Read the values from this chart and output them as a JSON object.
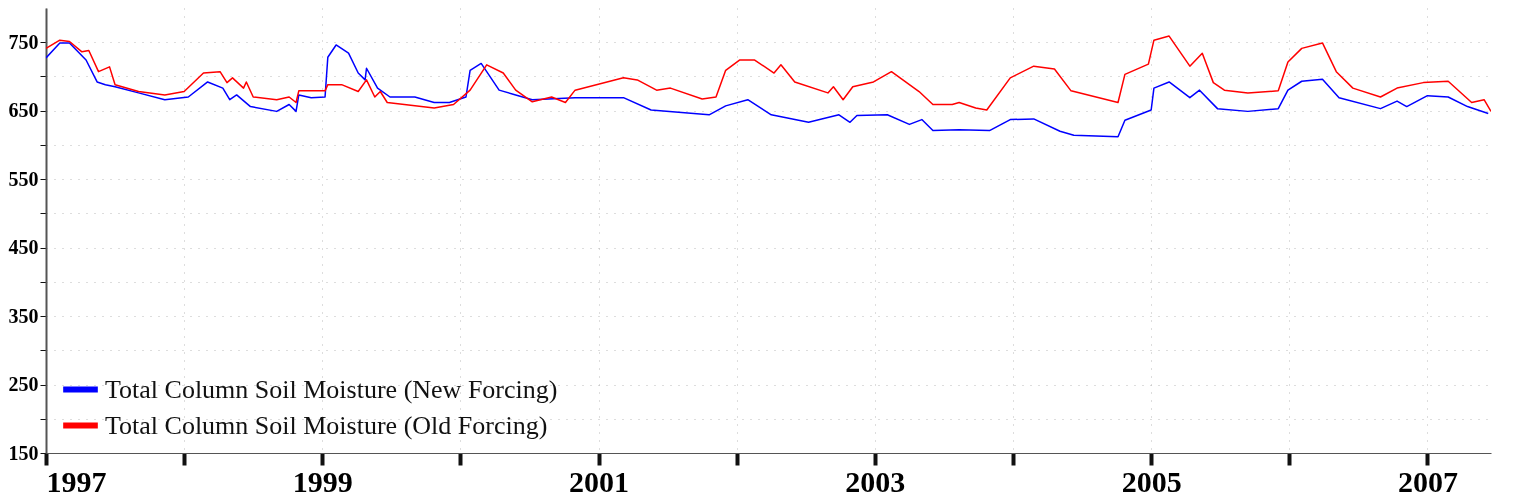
{
  "chart_data": {
    "type": "line",
    "xlim": [
      1997,
      2007.46
    ],
    "ylim": [
      150,
      800
    ],
    "xticks": [
      1997,
      {
        "value": 1998,
        "label": null
      },
      1999,
      {
        "value": 2000,
        "label": null
      },
      2001,
      {
        "value": 2002,
        "label": null
      },
      2003,
      {
        "value": 2004,
        "label": null
      },
      2005,
      {
        "value": 2006,
        "label": null
      },
      2007
    ],
    "yticks": [
      150,
      {
        "value": 200,
        "label": null
      },
      250,
      {
        "value": 300,
        "label": null
      },
      350,
      {
        "value": 400,
        "label": null
      },
      450,
      {
        "value": 500,
        "label": null
      },
      550,
      {
        "value": 600,
        "label": null
      },
      650,
      {
        "value": 700,
        "label": null
      },
      750
    ],
    "grid": true,
    "legend": "bottom left",
    "series": [
      {
        "name": "Total Column Soil Moisture (New Forcing)",
        "color": "#0000ff",
        "x": [
          1997.0,
          1997.1,
          1997.17,
          1997.29,
          1997.37,
          1997.43,
          1997.5,
          1997.67,
          1997.86,
          1998.03,
          1998.17,
          1998.28,
          1998.33,
          1998.38,
          1998.48,
          1998.67,
          1998.76,
          1998.81,
          1998.83,
          1998.92,
          1999.02,
          1999.04,
          1999.1,
          1999.19,
          1999.26,
          1999.31,
          1999.32,
          1999.4,
          1999.49,
          1999.67,
          1999.81,
          1999.92,
          2000.04,
          2000.07,
          2000.15,
          2000.28,
          2000.4,
          2000.52,
          2000.83,
          2001.18,
          2001.38,
          2001.8,
          2001.92,
          2002.08,
          2002.25,
          2002.52,
          2002.74,
          2002.82,
          2002.87,
          2003.09,
          2003.25,
          2003.34,
          2003.42,
          2003.61,
          2003.83,
          2003.98,
          2004.15,
          2004.34,
          2004.44,
          2004.76,
          2004.81,
          2005.0,
          2005.02,
          2005.13,
          2005.28,
          2005.35,
          2005.48,
          2005.7,
          2005.92,
          2005.99,
          2006.09,
          2006.24,
          2006.36,
          2006.66,
          2006.78,
          2006.85,
          2007.0,
          2007.15,
          2007.29,
          2007.44
        ],
        "values": [
          727,
          749,
          749,
          724,
          692,
          688,
          685,
          676,
          666,
          670,
          692,
          683,
          666,
          673,
          656,
          649,
          659,
          649,
          673,
          669,
          670,
          728,
          746,
          734,
          705,
          695,
          712,
          683,
          670,
          670,
          662,
          662,
          670,
          709,
          719,
          680,
          673,
          666,
          669,
          669,
          651,
          644,
          657,
          666,
          644,
          633,
          644,
          633,
          643,
          644,
          630,
          637,
          621,
          622,
          621,
          637,
          638,
          620,
          614,
          612,
          636,
          651,
          683,
          692,
          669,
          680,
          653,
          649,
          653,
          680,
          693,
          696,
          669,
          653,
          664,
          656,
          672,
          670,
          656,
          646
        ]
      },
      {
        "name": "Total Column Soil Moisture (Old Forcing)",
        "color": "#ff0000",
        "x": [
          1997.0,
          1997.1,
          1997.17,
          1997.26,
          1997.31,
          1997.38,
          1997.46,
          1997.5,
          1997.67,
          1997.86,
          1998.0,
          1998.14,
          1998.26,
          1998.31,
          1998.35,
          1998.43,
          1998.45,
          1998.5,
          1998.67,
          1998.76,
          1998.81,
          1998.83,
          1999.02,
          1999.04,
          1999.14,
          1999.26,
          1999.32,
          1999.38,
          1999.42,
          1999.47,
          1999.81,
          1999.95,
          2000.07,
          2000.19,
          2000.31,
          2000.4,
          2000.52,
          2000.66,
          2000.76,
          2000.83,
          2001.18,
          2001.28,
          2001.42,
          2001.52,
          2001.75,
          2001.85,
          2001.92,
          2002.02,
          2002.13,
          2002.27,
          2002.32,
          2002.42,
          2002.66,
          2002.7,
          2002.77,
          2002.84,
          2002.99,
          2003.12,
          2003.32,
          2003.42,
          2003.56,
          2003.61,
          2003.73,
          2003.81,
          2003.98,
          2004.15,
          2004.3,
          2004.42,
          2004.76,
          2004.81,
          2004.98,
          2005.02,
          2005.13,
          2005.28,
          2005.37,
          2005.45,
          2005.53,
          2005.7,
          2005.92,
          2005.99,
          2006.09,
          2006.24,
          2006.34,
          2006.46,
          2006.66,
          2006.78,
          2006.97,
          2007.15,
          2007.32,
          2007.41,
          2007.46
        ],
        "values": [
          741,
          753,
          751,
          736,
          738,
          707,
          714,
          688,
          678,
          673,
          678,
          705,
          707,
          691,
          698,
          683,
          692,
          670,
          666,
          670,
          662,
          679,
          679,
          688,
          688,
          678,
          695,
          670,
          678,
          662,
          654,
          659,
          680,
          717,
          705,
          680,
          663,
          670,
          662,
          680,
          698,
          695,
          680,
          683,
          667,
          670,
          709,
          724,
          724,
          705,
          717,
          692,
          676,
          685,
          666,
          685,
          692,
          707,
          678,
          659,
          659,
          662,
          654,
          651,
          698,
          715,
          711,
          679,
          662,
          703,
          718,
          753,
          759,
          715,
          734,
          691,
          680,
          676,
          679,
          721,
          741,
          749,
          707,
          683,
          670,
          683,
          691,
          693,
          662,
          666,
          649
        ]
      }
    ]
  }
}
